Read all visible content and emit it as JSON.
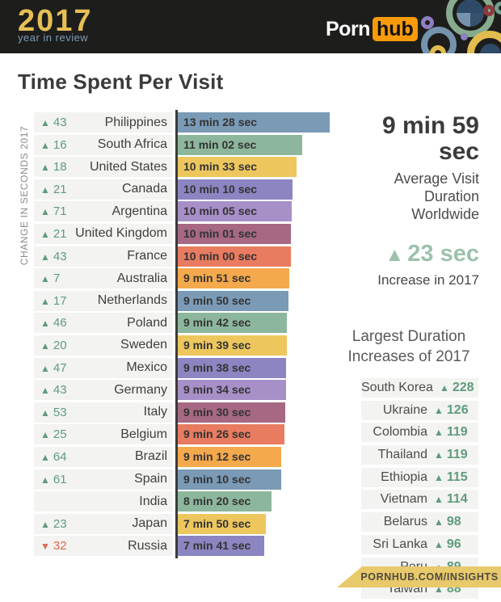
{
  "header": {
    "logo_year": "2017",
    "logo_subtitle": "year in review",
    "brand": {
      "porn": "Porn",
      "hub": "hub",
      "hub_bg": "#f79b0a"
    }
  },
  "page_title": "Time Spent Per Visit",
  "icons": {
    "up": "▲",
    "down": "▼"
  },
  "colors": {
    "change_up": "#5f9b7d",
    "change_down": "#e0654f",
    "increase_accent": "#9cc2ab",
    "axis": "#3b3b3b",
    "row_strip": "#f3f3f1",
    "footer_gold": "#e8c96b",
    "header_bg": "#1d1d1b"
  },
  "chart_data": {
    "type": "bar",
    "orientation": "horizontal",
    "title": "Time Spent Per Visit",
    "axis_label": "CHANGE IN SECONDS 2017",
    "value_unit": "average visit duration",
    "max_seconds": 808,
    "rows": [
      {
        "country": "Philippines",
        "duration_label": "13 min 28 sec",
        "duration_seconds": 808,
        "change_seconds": 43,
        "change_direction": "up",
        "bar_color": "#7a9ab6"
      },
      {
        "country": "South Africa",
        "duration_label": "11 min 02 sec",
        "duration_seconds": 662,
        "change_seconds": 16,
        "change_direction": "up",
        "bar_color": "#8db79c"
      },
      {
        "country": "United States",
        "duration_label": "10 min 33 sec",
        "duration_seconds": 633,
        "change_seconds": 18,
        "change_direction": "up",
        "bar_color": "#edc75e"
      },
      {
        "country": "Canada",
        "duration_label": "10 min 10 sec",
        "duration_seconds": 610,
        "change_seconds": 21,
        "change_direction": "up",
        "bar_color": "#8b85c1"
      },
      {
        "country": "Argentina",
        "duration_label": "10 min 05 sec",
        "duration_seconds": 605,
        "change_seconds": 71,
        "change_direction": "up",
        "bar_color": "#a78fc8"
      },
      {
        "country": "United Kingdom",
        "duration_label": "10 min 01 sec",
        "duration_seconds": 601,
        "change_seconds": 21,
        "change_direction": "up",
        "bar_color": "#a66883"
      },
      {
        "country": "France",
        "duration_label": "10 min 00 sec",
        "duration_seconds": 600,
        "change_seconds": 43,
        "change_direction": "up",
        "bar_color": "#e87b60"
      },
      {
        "country": "Australia",
        "duration_label": "9 min 51 sec",
        "duration_seconds": 591,
        "change_seconds": 7,
        "change_direction": "up",
        "bar_color": "#f4a94c"
      },
      {
        "country": "Netherlands",
        "duration_label": "9 min 50 sec",
        "duration_seconds": 590,
        "change_seconds": 17,
        "change_direction": "up",
        "bar_color": "#7a9ab6"
      },
      {
        "country": "Poland",
        "duration_label": "9 min 42 sec",
        "duration_seconds": 582,
        "change_seconds": 46,
        "change_direction": "up",
        "bar_color": "#8db79c"
      },
      {
        "country": "Sweden",
        "duration_label": "9 min 39 sec",
        "duration_seconds": 579,
        "change_seconds": 20,
        "change_direction": "up",
        "bar_color": "#edc75e"
      },
      {
        "country": "Mexico",
        "duration_label": "9 min 38 sec",
        "duration_seconds": 578,
        "change_seconds": 47,
        "change_direction": "up",
        "bar_color": "#8b85c1"
      },
      {
        "country": "Germany",
        "duration_label": "9 min 34 sec",
        "duration_seconds": 574,
        "change_seconds": 43,
        "change_direction": "up",
        "bar_color": "#a78fc8"
      },
      {
        "country": "Italy",
        "duration_label": "9 min 30 sec",
        "duration_seconds": 570,
        "change_seconds": 53,
        "change_direction": "up",
        "bar_color": "#a66883"
      },
      {
        "country": "Belgium",
        "duration_label": "9 min 26 sec",
        "duration_seconds": 566,
        "change_seconds": 25,
        "change_direction": "up",
        "bar_color": "#e87b60"
      },
      {
        "country": "Brazil",
        "duration_label": "9 min 12 sec",
        "duration_seconds": 552,
        "change_seconds": 64,
        "change_direction": "up",
        "bar_color": "#f4a94c"
      },
      {
        "country": "Spain",
        "duration_label": "9 min 10 sec",
        "duration_seconds": 550,
        "change_seconds": 61,
        "change_direction": "up",
        "bar_color": "#7a9ab6"
      },
      {
        "country": "India",
        "duration_label": "8 min 20 sec",
        "duration_seconds": 500,
        "change_seconds": null,
        "change_direction": null,
        "bar_color": "#8db79c"
      },
      {
        "country": "Japan",
        "duration_label": "7 min 50 sec",
        "duration_seconds": 470,
        "change_seconds": 23,
        "change_direction": "up",
        "bar_color": "#edc75e"
      },
      {
        "country": "Russia",
        "duration_label": "7 min 41 sec",
        "duration_seconds": 461,
        "change_seconds": 32,
        "change_direction": "down",
        "bar_color": "#8b85c1"
      }
    ]
  },
  "summary": {
    "average_value": "9 min 59 sec",
    "average_caption_line1": "Average Visit Duration",
    "average_caption_line2": "Worldwide",
    "increase_value": "23 sec",
    "increase_caption": "Increase in 2017"
  },
  "largest_increases": {
    "heading_line1": "Largest Duration",
    "heading_line2": "Increases of 2017",
    "items": [
      {
        "country": "South Korea",
        "value": 228
      },
      {
        "country": "Ukraine",
        "value": 126
      },
      {
        "country": "Colombia",
        "value": 119
      },
      {
        "country": "Thailand",
        "value": 119
      },
      {
        "country": "Ethiopia",
        "value": 115
      },
      {
        "country": "Vietnam",
        "value": 114
      },
      {
        "country": "Belarus",
        "value": 98
      },
      {
        "country": "Sri Lanka",
        "value": 96
      },
      {
        "country": "Peru",
        "value": 89
      },
      {
        "country": "Taiwan",
        "value": 88
      }
    ]
  },
  "footer": {
    "text": "PORNHUB.COM/INSIGHTS"
  }
}
